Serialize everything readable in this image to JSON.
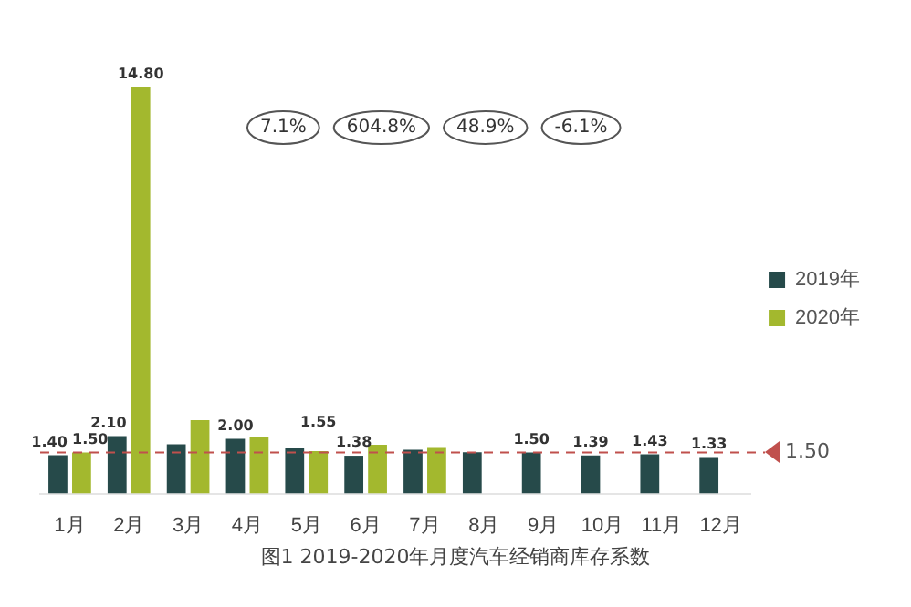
{
  "chart_data": {
    "type": "bar",
    "title": "图1  2019-2020年月度汽车经销商库存系数",
    "categories": [
      "1月",
      "2月",
      "3月",
      "4月",
      "5月",
      "6月",
      "7月",
      "8月",
      "9月",
      "10月",
      "11月",
      "12月"
    ],
    "series": [
      {
        "name": "2019年",
        "color": "#264a4a",
        "values": [
          1.4,
          2.1,
          1.8,
          2.0,
          1.65,
          1.38,
          1.6,
          1.51,
          1.5,
          1.39,
          1.43,
          1.33
        ],
        "value_labels": [
          "1.40",
          "2.10",
          null,
          "2.00",
          null,
          "1.38",
          null,
          null,
          "1.50",
          "1.39",
          "1.43",
          "1.33"
        ]
      },
      {
        "name": "2020年",
        "color": "#a3b82e",
        "values": [
          1.5,
          14.8,
          2.68,
          2.05,
          1.55,
          1.78,
          1.7,
          null,
          null,
          null,
          null,
          null
        ],
        "value_labels": [
          "1.50",
          "14.80",
          null,
          null,
          "1.55",
          null,
          null,
          null,
          null,
          null,
          null,
          null
        ]
      }
    ],
    "tick_labels": "x",
    "grid": false,
    "legend": "right",
    "ref_lines": [
      {
        "axis": "y",
        "value": 1.5,
        "label": "1.50",
        "color": "#c0504d",
        "line_style": "dashed"
      }
    ],
    "annotations": [
      "7.1%",
      "604.8%",
      "48.9%",
      "-6.1%"
    ]
  }
}
